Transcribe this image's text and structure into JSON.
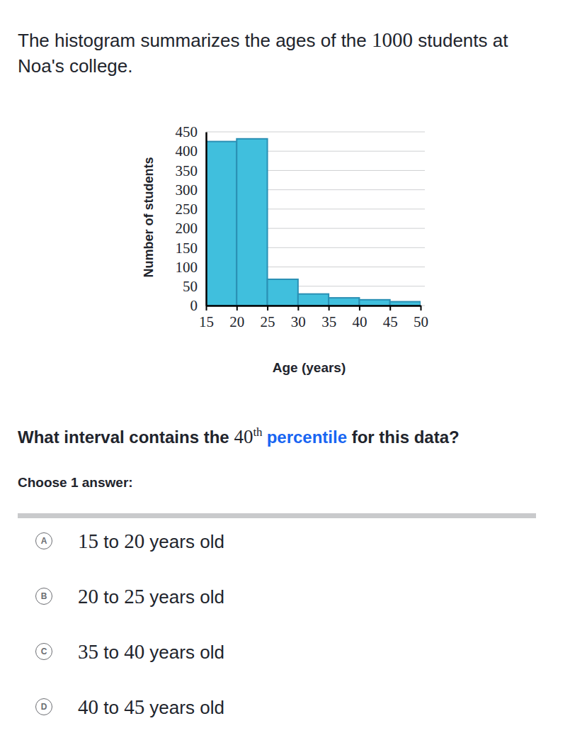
{
  "intro": [
    {
      "t": "The histogram summarizes the ages of the "
    },
    {
      "m": "1000"
    },
    {
      "t": " students at Noa's college."
    }
  ],
  "chart_data": {
    "type": "histogram",
    "x_label": "Age (years)",
    "y_label": "Number of students",
    "bins": [
      15,
      20,
      25,
      30,
      35,
      40,
      45,
      50
    ],
    "values": [
      425,
      432,
      68,
      30,
      20,
      15,
      10
    ],
    "color": "#40bfdd",
    "xlim": [
      15,
      50
    ],
    "xticks": [
      15,
      20,
      25,
      30,
      35,
      40,
      45,
      50
    ],
    "ylim": [
      0,
      450
    ],
    "yticks": [
      0,
      50,
      100,
      150,
      200,
      250,
      300,
      350,
      400,
      450
    ],
    "grid": true
  },
  "question": [
    {
      "t": "What interval contains the "
    },
    {
      "m": "40",
      "sup": "th"
    },
    {
      "link": "percentile"
    },
    {
      "t": " for this data?"
    }
  ],
  "prompt": "Choose 1 answer:",
  "choices": [
    {
      "letter": "A",
      "text": [
        {
          "m": "15"
        },
        {
          "t": " to "
        },
        {
          "m": "20"
        },
        {
          "t": " years old"
        }
      ]
    },
    {
      "letter": "B",
      "text": [
        {
          "m": "20"
        },
        {
          "t": " to "
        },
        {
          "m": "25"
        },
        {
          "t": " years old"
        }
      ]
    },
    {
      "letter": "C",
      "text": [
        {
          "m": "35"
        },
        {
          "t": " to "
        },
        {
          "m": "40"
        },
        {
          "t": " years old"
        }
      ]
    },
    {
      "letter": "D",
      "text": [
        {
          "m": "40"
        },
        {
          "t": " to "
        },
        {
          "m": "45"
        },
        {
          "t": " years old"
        }
      ]
    }
  ]
}
